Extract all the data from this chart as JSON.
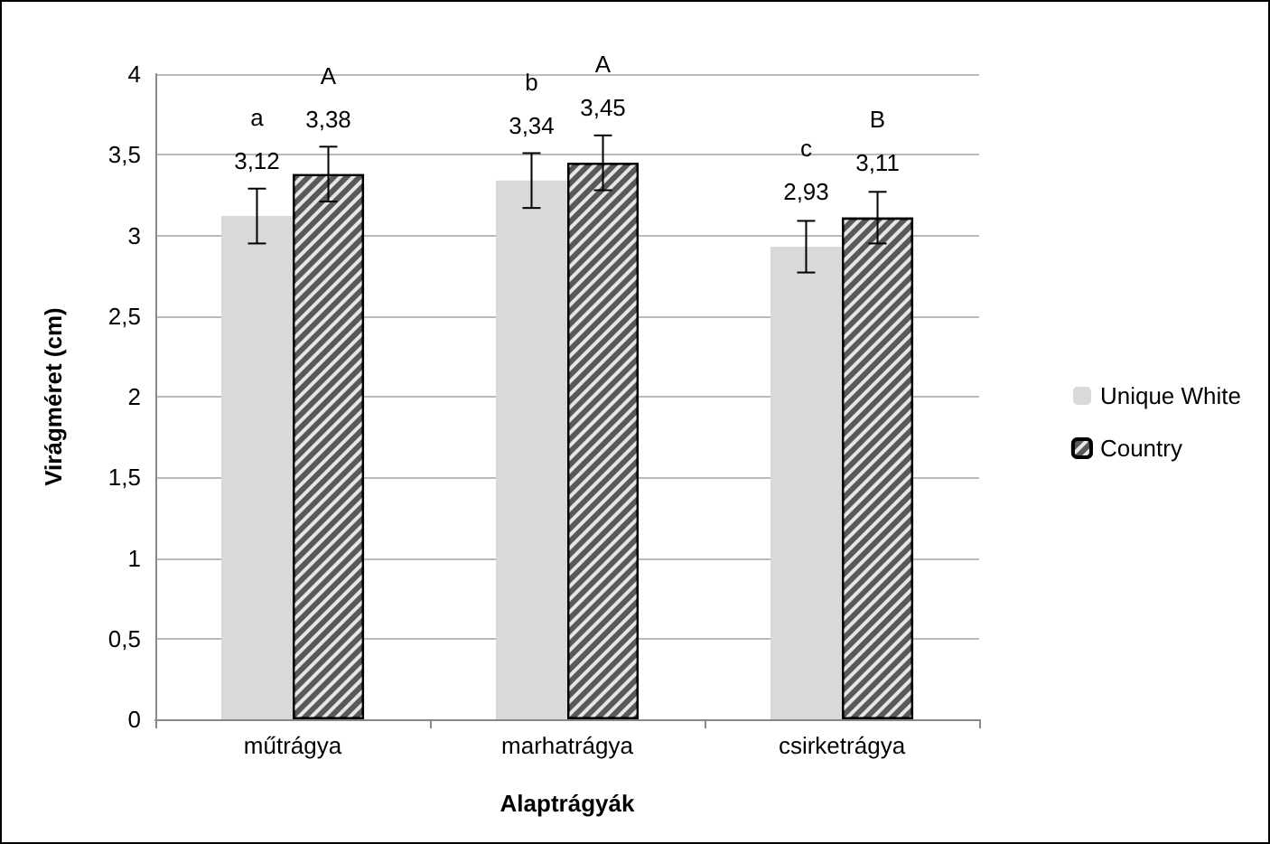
{
  "chart_data": {
    "type": "bar",
    "xlabel": "Alaptrágyák",
    "ylabel": "Virágméret (cm)",
    "categories": [
      "műtrágya",
      "marhatrágya",
      "csirketrágya"
    ],
    "series": [
      {
        "name": "Unique White",
        "color": "#d9d9d9",
        "values": [
          3.12,
          3.34,
          2.93
        ],
        "errors": [
          0.17,
          0.17,
          0.16
        ],
        "value_labels": [
          "3,12",
          "3,34",
          "2,93"
        ]
      },
      {
        "name": "Country",
        "color": "#595959",
        "values": [
          3.38,
          3.45,
          3.11
        ],
        "errors": [
          0.17,
          0.17,
          0.16
        ],
        "value_labels": [
          "3,38",
          "3,45",
          "3,11"
        ]
      }
    ],
    "annotations": [
      "a",
      "A",
      "b",
      "A",
      "c",
      "B"
    ],
    "ylim": [
      0,
      4
    ],
    "yticks": [
      0,
      {
        "value": 0.5,
        "label": "0,5"
      },
      1,
      {
        "value": 1.5,
        "label": "1,5"
      },
      2,
      {
        "value": 2.5,
        "label": "2,5"
      },
      3,
      {
        "value": 3.5,
        "label": "3,5"
      },
      4
    ],
    "grid": "y",
    "legend": "right"
  }
}
